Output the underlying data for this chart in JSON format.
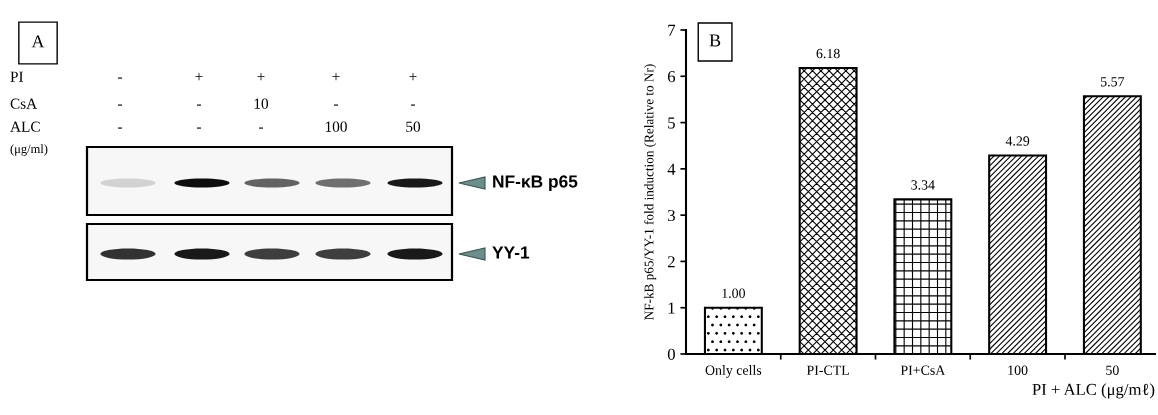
{
  "chart_data": [
    {
      "type": "other",
      "title": "A",
      "annotations": [
        "PI",
        "-",
        "+",
        "+",
        "+",
        "+",
        "CsA",
        "-",
        "-",
        "10",
        "-",
        "-",
        "ALC",
        "-",
        "-",
        "-",
        "100",
        "50",
        "(μg/ml)",
        "NF-κB p65",
        "YY-1"
      ]
    },
    {
      "type": "bar",
      "title": "B",
      "categories": [
        "Only cells",
        "PI-CTL",
        "PI+CsA",
        "100",
        "50"
      ],
      "values": [
        1.0,
        6.18,
        3.34,
        4.29,
        5.57
      ],
      "value_labels": [
        "1.00",
        "6.18",
        "3.34",
        "4.29",
        "5.57"
      ],
      "color": "#000000",
      "ylabel": "NF-kB p65/YY-1 fold induction (Relative to Nr)",
      "xlabel": "PI + ALC (μg/mℓ)",
      "ylim": [
        0,
        7
      ],
      "yticks": [
        0,
        1,
        2,
        3,
        4,
        5,
        6,
        7
      ]
    }
  ]
}
